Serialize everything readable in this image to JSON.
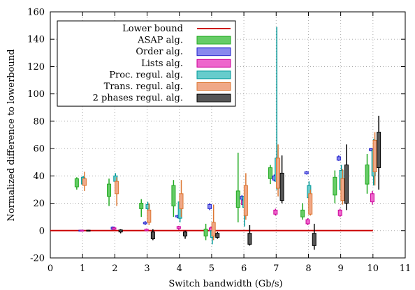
{
  "chart_data": {
    "type": "box",
    "xlabel": "Switch bandwidth (Gb/s)",
    "ylabel": "Normalized difference to lowerbound",
    "xlim": [
      0,
      11
    ],
    "ylim": [
      -20,
      160
    ],
    "xticks": [
      0,
      1,
      2,
      3,
      4,
      5,
      6,
      7,
      8,
      9,
      10,
      11
    ],
    "yticks": [
      -20,
      0,
      20,
      40,
      60,
      80,
      100,
      120,
      140,
      160
    ],
    "grid": true,
    "legend_position": "top-left",
    "lower_bound": {
      "name": "Lower bound",
      "value": 0,
      "color": "#cc0000"
    },
    "series": [
      {
        "name": "ASAP alg.",
        "offset": -0.18,
        "fill": "#66cc66",
        "stroke": "#22aa22",
        "boxes": [
          {
            "x": 1,
            "min": 30,
            "q1": 32,
            "q3": 38,
            "max": 39
          },
          {
            "x": 2,
            "min": 18,
            "q1": 25,
            "q3": 34,
            "max": 38
          },
          {
            "x": 3,
            "min": 10,
            "q1": 16,
            "q3": 20,
            "max": 23
          },
          {
            "x": 4,
            "min": 10,
            "q1": 18,
            "q3": 33,
            "max": 37
          },
          {
            "x": 5,
            "min": -7,
            "q1": -4,
            "q3": 1,
            "max": 5
          },
          {
            "x": 6,
            "min": 6,
            "q1": 17,
            "q3": 29,
            "max": 57
          },
          {
            "x": 7,
            "min": 34,
            "q1": 38,
            "q3": 46,
            "max": 48
          },
          {
            "x": 8,
            "min": 8,
            "q1": 10,
            "q3": 15,
            "max": 20
          },
          {
            "x": 9,
            "min": 20,
            "q1": 26,
            "q3": 39,
            "max": 44
          },
          {
            "x": 10,
            "min": 27,
            "q1": 34,
            "q3": 48,
            "max": 56
          }
        ]
      },
      {
        "name": "Order alg.",
        "offset": -0.06,
        "fill": "#8888ee",
        "stroke": "#2222cc",
        "boxes": [
          {
            "x": 1,
            "min": -0.5,
            "q1": -0.3,
            "q3": 0.3,
            "max": 0.5
          },
          {
            "x": 2,
            "min": 0.5,
            "q1": 1,
            "q3": 2.5,
            "max": 3
          },
          {
            "x": 3,
            "min": 4,
            "q1": 5,
            "q3": 6,
            "max": 7
          },
          {
            "x": 4,
            "min": 9,
            "q1": 10,
            "q3": 11,
            "max": 11.5
          },
          {
            "x": 5,
            "min": 15,
            "q1": 16,
            "q3": 19,
            "max": 20
          },
          {
            "x": 6,
            "min": 22,
            "q1": 23,
            "q3": 25,
            "max": 26
          },
          {
            "x": 7,
            "min": 36,
            "q1": 37,
            "q3": 40,
            "max": 41
          },
          {
            "x": 8,
            "min": 41,
            "q1": 41.5,
            "q3": 43,
            "max": 43.5
          },
          {
            "x": 9,
            "min": 51,
            "q1": 51.5,
            "q3": 54,
            "max": 55
          },
          {
            "x": 10,
            "min": 58,
            "q1": 58.5,
            "q3": 60,
            "max": 60.5
          }
        ]
      },
      {
        "name": "Lists alg.",
        "offset": -0.02,
        "fill": "#ee66cc",
        "stroke": "#cc0099",
        "boxes": [
          {
            "x": 1,
            "min": -0.5,
            "q1": -0.3,
            "q3": 0.3,
            "max": 0.5
          },
          {
            "x": 2,
            "min": 0.5,
            "q1": 1,
            "q3": 2,
            "max": 2.5
          },
          {
            "x": 3,
            "min": -0.5,
            "q1": 0,
            "q3": 1,
            "max": 1.5
          },
          {
            "x": 4,
            "min": 0.5,
            "q1": 1.5,
            "q3": 3,
            "max": 3.5
          },
          {
            "x": 5,
            "min": -1,
            "q1": 0,
            "q3": 2,
            "max": 3
          },
          {
            "x": 6,
            "min": 17,
            "q1": 19,
            "q3": 22,
            "max": 23
          },
          {
            "x": 7,
            "min": 11,
            "q1": 12,
            "q3": 15,
            "max": 16
          },
          {
            "x": 8,
            "min": 4,
            "q1": 5,
            "q3": 8,
            "max": 9
          },
          {
            "x": 9,
            "min": 10,
            "q1": 11,
            "q3": 15,
            "max": 16
          },
          {
            "x": 10,
            "min": 19,
            "q1": 21,
            "q3": 27,
            "max": 29
          }
        ]
      },
      {
        "name": "Proc. regul. alg.",
        "offset": 0.02,
        "fill": "#66cccc",
        "stroke": "#009999",
        "boxes": [
          {
            "x": 1,
            "min": 33,
            "q1": 34,
            "q3": 39,
            "max": 40
          },
          {
            "x": 2,
            "min": 34,
            "q1": 36,
            "q3": 40,
            "max": 42
          },
          {
            "x": 3,
            "min": 15,
            "q1": 16,
            "q3": 19,
            "max": 21
          },
          {
            "x": 4,
            "min": 6,
            "q1": 9,
            "q3": 21,
            "max": 26
          },
          {
            "x": 5,
            "min": -10,
            "q1": -5,
            "q3": 0,
            "max": 2
          },
          {
            "x": 6,
            "min": 3,
            "q1": 17,
            "q3": 25,
            "max": 28
          },
          {
            "x": 7,
            "min": 30,
            "q1": 36,
            "q3": 53,
            "max": 149
          },
          {
            "x": 8,
            "min": 22,
            "q1": 24,
            "q3": 33,
            "max": 36
          },
          {
            "x": 9,
            "min": 27,
            "q1": 30,
            "q3": 44,
            "max": 48
          },
          {
            "x": 10,
            "min": 33,
            "q1": 40,
            "q3": 59,
            "max": 67
          }
        ]
      },
      {
        "name": "Trans. regul. alg.",
        "offset": 0.06,
        "fill": "#f0a888",
        "stroke": "#dd7733",
        "boxes": [
          {
            "x": 1,
            "min": 29,
            "q1": 33,
            "q3": 38,
            "max": 43
          },
          {
            "x": 2,
            "min": 18,
            "q1": 27,
            "q3": 36,
            "max": 39
          },
          {
            "x": 3,
            "min": 4,
            "q1": 6,
            "q3": 15,
            "max": 20
          },
          {
            "x": 4,
            "min": 10,
            "q1": 16,
            "q3": 27,
            "max": 37
          },
          {
            "x": 5,
            "min": -7,
            "q1": -4,
            "q3": 6,
            "max": 19
          },
          {
            "x": 6,
            "min": 8,
            "q1": 11,
            "q3": 33,
            "max": 42
          },
          {
            "x": 7,
            "min": 25,
            "q1": 31,
            "q3": 53,
            "max": 63
          },
          {
            "x": 8,
            "min": 11,
            "q1": 12,
            "q3": 27,
            "max": 30
          },
          {
            "x": 9,
            "min": 19,
            "q1": 22,
            "q3": 38,
            "max": 45
          },
          {
            "x": 10,
            "min": 33,
            "q1": 43,
            "q3": 66,
            "max": 72
          }
        ]
      },
      {
        "name": "2 phases regul. alg.",
        "offset": 0.18,
        "fill": "#555555",
        "stroke": "#000000",
        "boxes": [
          {
            "x": 1,
            "min": -0.5,
            "q1": -0.3,
            "q3": 0.3,
            "max": 0.5
          },
          {
            "x": 2,
            "min": -2,
            "q1": -1,
            "q3": 0.5,
            "max": 1
          },
          {
            "x": 3,
            "min": -7,
            "q1": -6,
            "q3": -1,
            "max": 1
          },
          {
            "x": 4,
            "min": -6,
            "q1": -4,
            "q3": -1,
            "max": 0
          },
          {
            "x": 5,
            "min": -6,
            "q1": -5,
            "q3": -2,
            "max": -1
          },
          {
            "x": 6,
            "min": -11,
            "q1": -10,
            "q3": -2,
            "max": 4
          },
          {
            "x": 7,
            "min": 20,
            "q1": 22,
            "q3": 42,
            "max": 55
          },
          {
            "x": 8,
            "min": -14,
            "q1": -11,
            "q3": -2,
            "max": 5
          },
          {
            "x": 9,
            "min": 15,
            "q1": 20,
            "q3": 48,
            "max": 63
          },
          {
            "x": 10,
            "min": 30,
            "q1": 46,
            "q3": 72,
            "max": 84
          }
        ]
      }
    ]
  }
}
